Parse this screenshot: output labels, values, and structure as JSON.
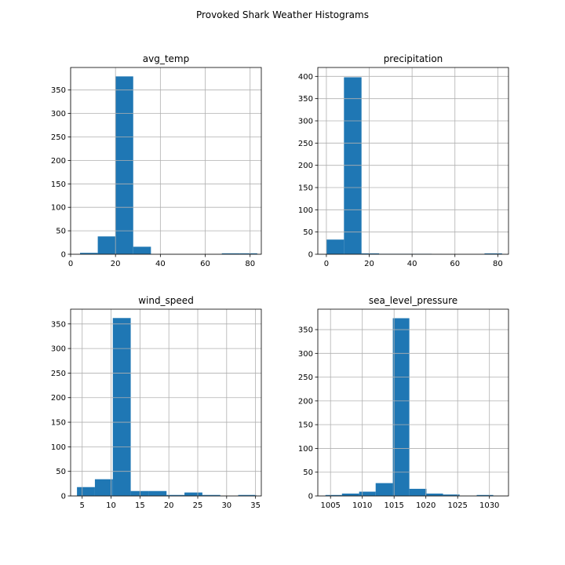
{
  "figure": {
    "suptitle": "Provoked Shark Weather Histograms"
  },
  "colors": {
    "bar": "#1f77b4",
    "grid": "#b0b0b0",
    "axis": "#000000"
  },
  "chart_data": [
    {
      "type": "bar",
      "title": "avg_temp",
      "xlabel": "",
      "ylabel": "",
      "grid": true,
      "xlim": [
        0,
        85
      ],
      "ylim": [
        0,
        398
      ],
      "xticks": [
        0,
        20,
        40,
        60,
        80
      ],
      "yticks": [
        0,
        50,
        100,
        150,
        200,
        250,
        300,
        350
      ],
      "bin_edges": [
        4.2,
        12.1,
        20.0,
        27.9,
        35.8,
        43.7,
        51.6,
        59.5,
        67.4,
        75.3,
        83.2
      ],
      "values": [
        3,
        38,
        379,
        16,
        0,
        0,
        0,
        0,
        2,
        2
      ]
    },
    {
      "type": "bar",
      "title": "precipitation",
      "xlabel": "",
      "ylabel": "",
      "grid": true,
      "xlim": [
        -4,
        85
      ],
      "ylim": [
        0,
        420
      ],
      "xticks": [
        0,
        20,
        40,
        60,
        80
      ],
      "yticks": [
        0,
        50,
        100,
        150,
        200,
        250,
        300,
        350,
        400
      ],
      "bin_edges": [
        0,
        8.2,
        16.4,
        24.6,
        32.8,
        41.0,
        49.2,
        57.4,
        65.6,
        73.8,
        82.0
      ],
      "values": [
        33,
        398,
        2,
        1,
        1,
        1,
        0,
        0,
        0,
        2
      ]
    },
    {
      "type": "bar",
      "title": "wind_speed",
      "xlabel": "",
      "ylabel": "",
      "grid": true,
      "xlim": [
        3,
        36
      ],
      "ylim": [
        0,
        380
      ],
      "xticks": [
        5,
        10,
        15,
        20,
        25,
        30,
        35
      ],
      "yticks": [
        0,
        50,
        100,
        150,
        200,
        250,
        300,
        350
      ],
      "bin_edges": [
        4.1,
        7.2,
        10.3,
        13.4,
        16.5,
        19.6,
        22.7,
        25.8,
        28.9,
        32.0,
        35.1
      ],
      "values": [
        18,
        34,
        362,
        10,
        10,
        2,
        7,
        2,
        0,
        2
      ]
    },
    {
      "type": "bar",
      "title": "sea_level_pressure",
      "xlabel": "",
      "ylabel": "",
      "grid": true,
      "xlim": [
        1003,
        1033
      ],
      "ylim": [
        0,
        393
      ],
      "xticks": [
        1005,
        1010,
        1015,
        1020,
        1025,
        1030
      ],
      "yticks": [
        0,
        50,
        100,
        150,
        200,
        250,
        300,
        350
      ],
      "bin_edges": [
        1004.2,
        1006.8,
        1009.5,
        1012.1,
        1014.8,
        1017.4,
        1020.1,
        1022.7,
        1025.3,
        1028.0,
        1030.6
      ],
      "values": [
        2,
        5,
        9,
        27,
        374,
        15,
        5,
        3,
        0,
        2
      ]
    }
  ]
}
